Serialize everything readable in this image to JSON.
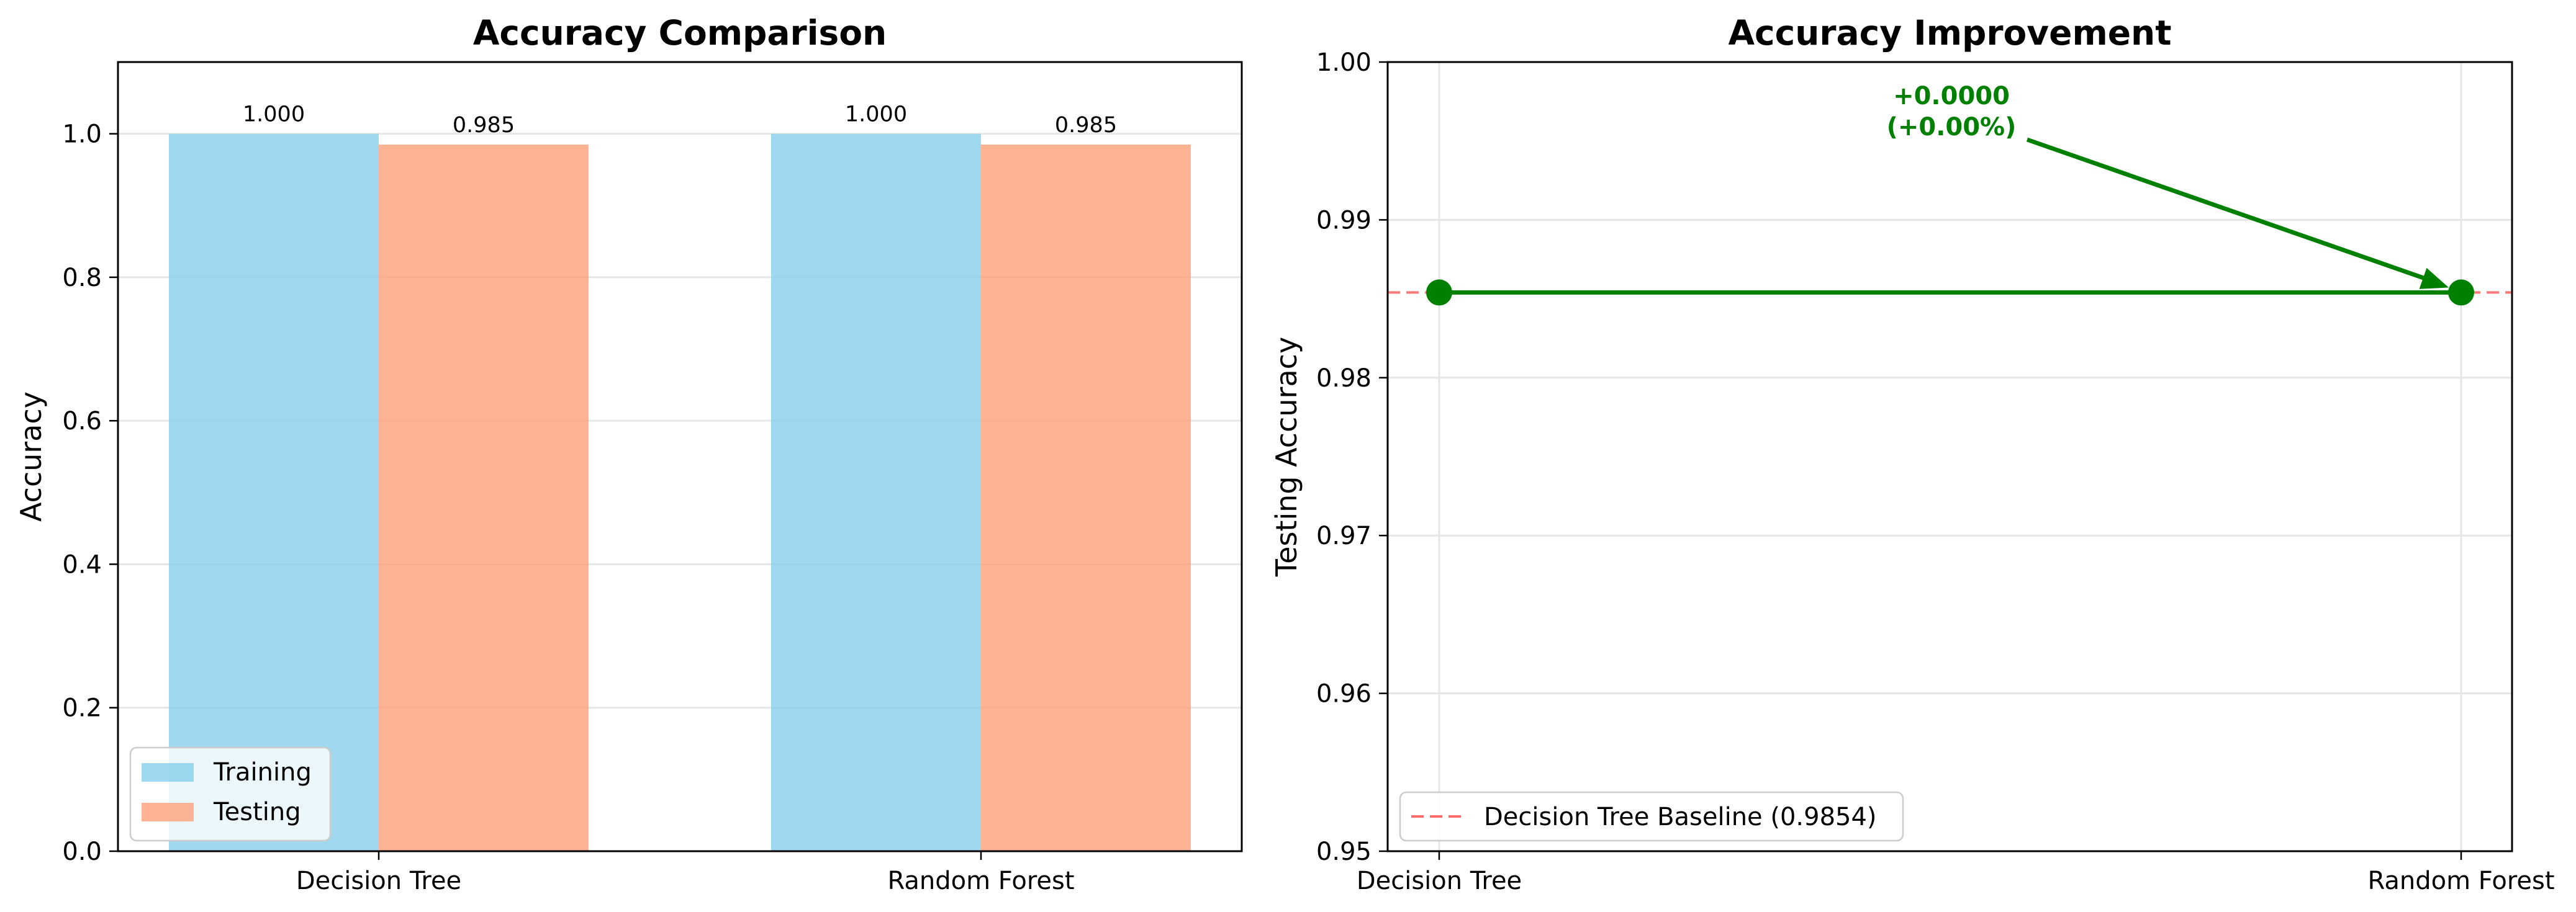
{
  "chart_data": [
    {
      "type": "bar",
      "title": "Accuracy Comparison",
      "xlabel": "",
      "ylabel": "Accuracy",
      "categories": [
        "Decision Tree",
        "Random Forest"
      ],
      "series": [
        {
          "name": "Training",
          "values": [
            1.0,
            1.0
          ],
          "color": "#87CEEB"
        },
        {
          "name": "Testing",
          "values": [
            0.985,
            0.985
          ],
          "color": "#FFA07A"
        }
      ],
      "data_labels": [
        [
          "1.000",
          "0.985"
        ],
        [
          "1.000",
          "0.985"
        ]
      ],
      "ylim": [
        0,
        1.1
      ],
      "yticks": [
        0.0,
        0.2,
        0.4,
        0.6,
        0.8,
        1.0
      ],
      "ytick_labels": [
        "0.0",
        "0.2",
        "0.4",
        "0.6",
        "0.8",
        "1.0"
      ],
      "grid": "y",
      "legend_position": "lower-left"
    },
    {
      "type": "line",
      "title": "Accuracy Improvement",
      "xlabel": "",
      "ylabel": "Testing Accuracy",
      "categories": [
        "Decision Tree",
        "Random Forest"
      ],
      "series": [
        {
          "values": [
            0.9854,
            0.9854
          ],
          "color": "#008000"
        }
      ],
      "baseline": {
        "label": "Decision Tree Baseline (0.9854)",
        "value": 0.9854,
        "color": "#FF6B6B",
        "style": "dashed"
      },
      "annotation": {
        "lines": [
          "+0.0000",
          "(+0.00%)"
        ],
        "color": "#008000"
      },
      "ylim": [
        0.95,
        1.0
      ],
      "yticks": [
        0.95,
        0.96,
        0.97,
        0.98,
        0.99,
        1.0
      ],
      "ytick_labels": [
        "0.95",
        "0.96",
        "0.97",
        "0.98",
        "0.99",
        "1.00"
      ],
      "grid": "both",
      "legend_position": "lower-left"
    }
  ]
}
